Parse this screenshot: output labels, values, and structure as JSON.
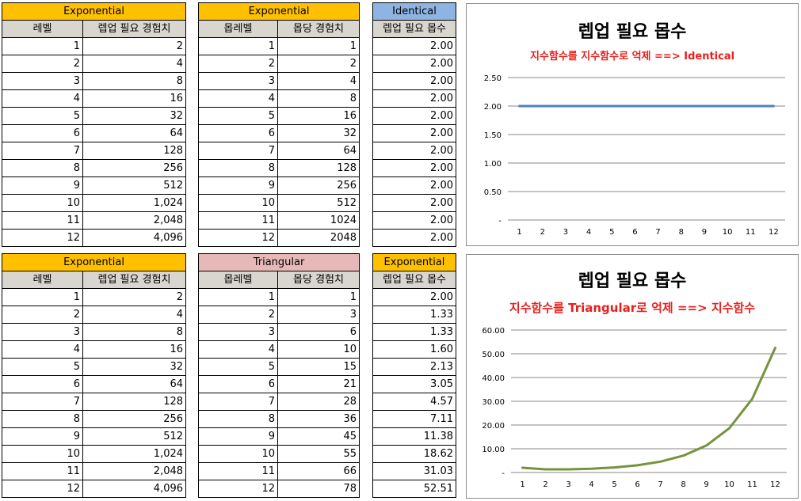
{
  "top": {
    "table1": {
      "title": "Exponential",
      "headers": [
        "레벨",
        "렙업 필요 경험치"
      ],
      "rows": [
        [
          "1",
          "2"
        ],
        [
          "2",
          "4"
        ],
        [
          "3",
          "8"
        ],
        [
          "4",
          "16"
        ],
        [
          "5",
          "32"
        ],
        [
          "6",
          "64"
        ],
        [
          "7",
          "128"
        ],
        [
          "8",
          "256"
        ],
        [
          "9",
          "512"
        ],
        [
          "10",
          "1,024"
        ],
        [
          "11",
          "2,048"
        ],
        [
          "12",
          "4,096"
        ]
      ]
    },
    "table2": {
      "title": "Exponential",
      "headers": [
        "몹레벨",
        "몹당 경험치"
      ],
      "rows": [
        [
          "1",
          "1"
        ],
        [
          "2",
          "2"
        ],
        [
          "3",
          "4"
        ],
        [
          "4",
          "8"
        ],
        [
          "5",
          "16"
        ],
        [
          "6",
          "32"
        ],
        [
          "7",
          "64"
        ],
        [
          "8",
          "128"
        ],
        [
          "9",
          "256"
        ],
        [
          "10",
          "512"
        ],
        [
          "11",
          "1024"
        ],
        [
          "12",
          "2048"
        ]
      ]
    },
    "table3": {
      "title": "Identical",
      "headers": [
        "렙업 필요 몹수"
      ],
      "rows": [
        "2.00",
        "2.00",
        "2.00",
        "2.00",
        "2.00",
        "2.00",
        "2.00",
        "2.00",
        "2.00",
        "2.00",
        "2.00",
        "2.00"
      ]
    }
  },
  "bottom": {
    "table1": {
      "title": "Exponential",
      "headers": [
        "레벨",
        "렙업 필요 경험치"
      ],
      "rows": [
        [
          "1",
          "2"
        ],
        [
          "2",
          "4"
        ],
        [
          "3",
          "8"
        ],
        [
          "4",
          "16"
        ],
        [
          "5",
          "32"
        ],
        [
          "6",
          "64"
        ],
        [
          "7",
          "128"
        ],
        [
          "8",
          "256"
        ],
        [
          "9",
          "512"
        ],
        [
          "10",
          "1,024"
        ],
        [
          "11",
          "2,048"
        ],
        [
          "12",
          "4,096"
        ]
      ]
    },
    "table2": {
      "title": "Triangular",
      "headers": [
        "몹레벨",
        "몹당 경험치"
      ],
      "rows": [
        [
          "1",
          "1"
        ],
        [
          "2",
          "3"
        ],
        [
          "3",
          "6"
        ],
        [
          "4",
          "10"
        ],
        [
          "5",
          "15"
        ],
        [
          "6",
          "21"
        ],
        [
          "7",
          "28"
        ],
        [
          "8",
          "36"
        ],
        [
          "9",
          "45"
        ],
        [
          "10",
          "55"
        ],
        [
          "11",
          "66"
        ],
        [
          "12",
          "78"
        ]
      ]
    },
    "table3": {
      "title": "Exponential",
      "headers": [
        "렙업 필요 몹수"
      ],
      "rows": [
        "2.00",
        "1.33",
        "1.33",
        "1.60",
        "2.13",
        "3.05",
        "4.57",
        "7.11",
        "11.38",
        "18.62",
        "31.03",
        "52.51"
      ]
    }
  },
  "colors": {
    "orange": "#ffc000",
    "blue": "#8db4e2",
    "pink": "#e6b9b8",
    "header_gray": "#d8d6ce",
    "subtitle_red": "#e8201c",
    "line_blue": "#4f81bd",
    "line_green": "#77933c"
  },
  "chart_data": [
    {
      "type": "line",
      "title": "렙업 필요 몹수",
      "subtitle": "지수함수를 지수함수로 억제 ==> Identical",
      "categories": [
        "1",
        "2",
        "3",
        "4",
        "5",
        "6",
        "7",
        "8",
        "9",
        "10",
        "11",
        "12"
      ],
      "series": [
        {
          "values": [
            2,
            2,
            2,
            2,
            2,
            2,
            2,
            2,
            2,
            2,
            2,
            2
          ]
        }
      ],
      "ylim": [
        0,
        2.5
      ],
      "yticks": [
        "-",
        "0.50",
        "1.00",
        "1.50",
        "2.00",
        "2.50"
      ],
      "grid": true,
      "legend": "none"
    },
    {
      "type": "line",
      "title": "렙업 필요 몹수",
      "subtitle": "지수함수를 Triangular로 억제 ==> 지수함수",
      "categories": [
        "1",
        "2",
        "3",
        "4",
        "5",
        "6",
        "7",
        "8",
        "9",
        "10",
        "11",
        "12"
      ],
      "series": [
        {
          "values": [
            2.0,
            1.33,
            1.33,
            1.6,
            2.13,
            3.05,
            4.57,
            7.11,
            11.38,
            18.62,
            31.03,
            52.51
          ]
        }
      ],
      "ylim": [
        0,
        60
      ],
      "yticks": [
        "-",
        "10.00",
        "20.00",
        "30.00",
        "40.00",
        "50.00",
        "60.00"
      ],
      "grid": true,
      "legend": "none"
    }
  ]
}
